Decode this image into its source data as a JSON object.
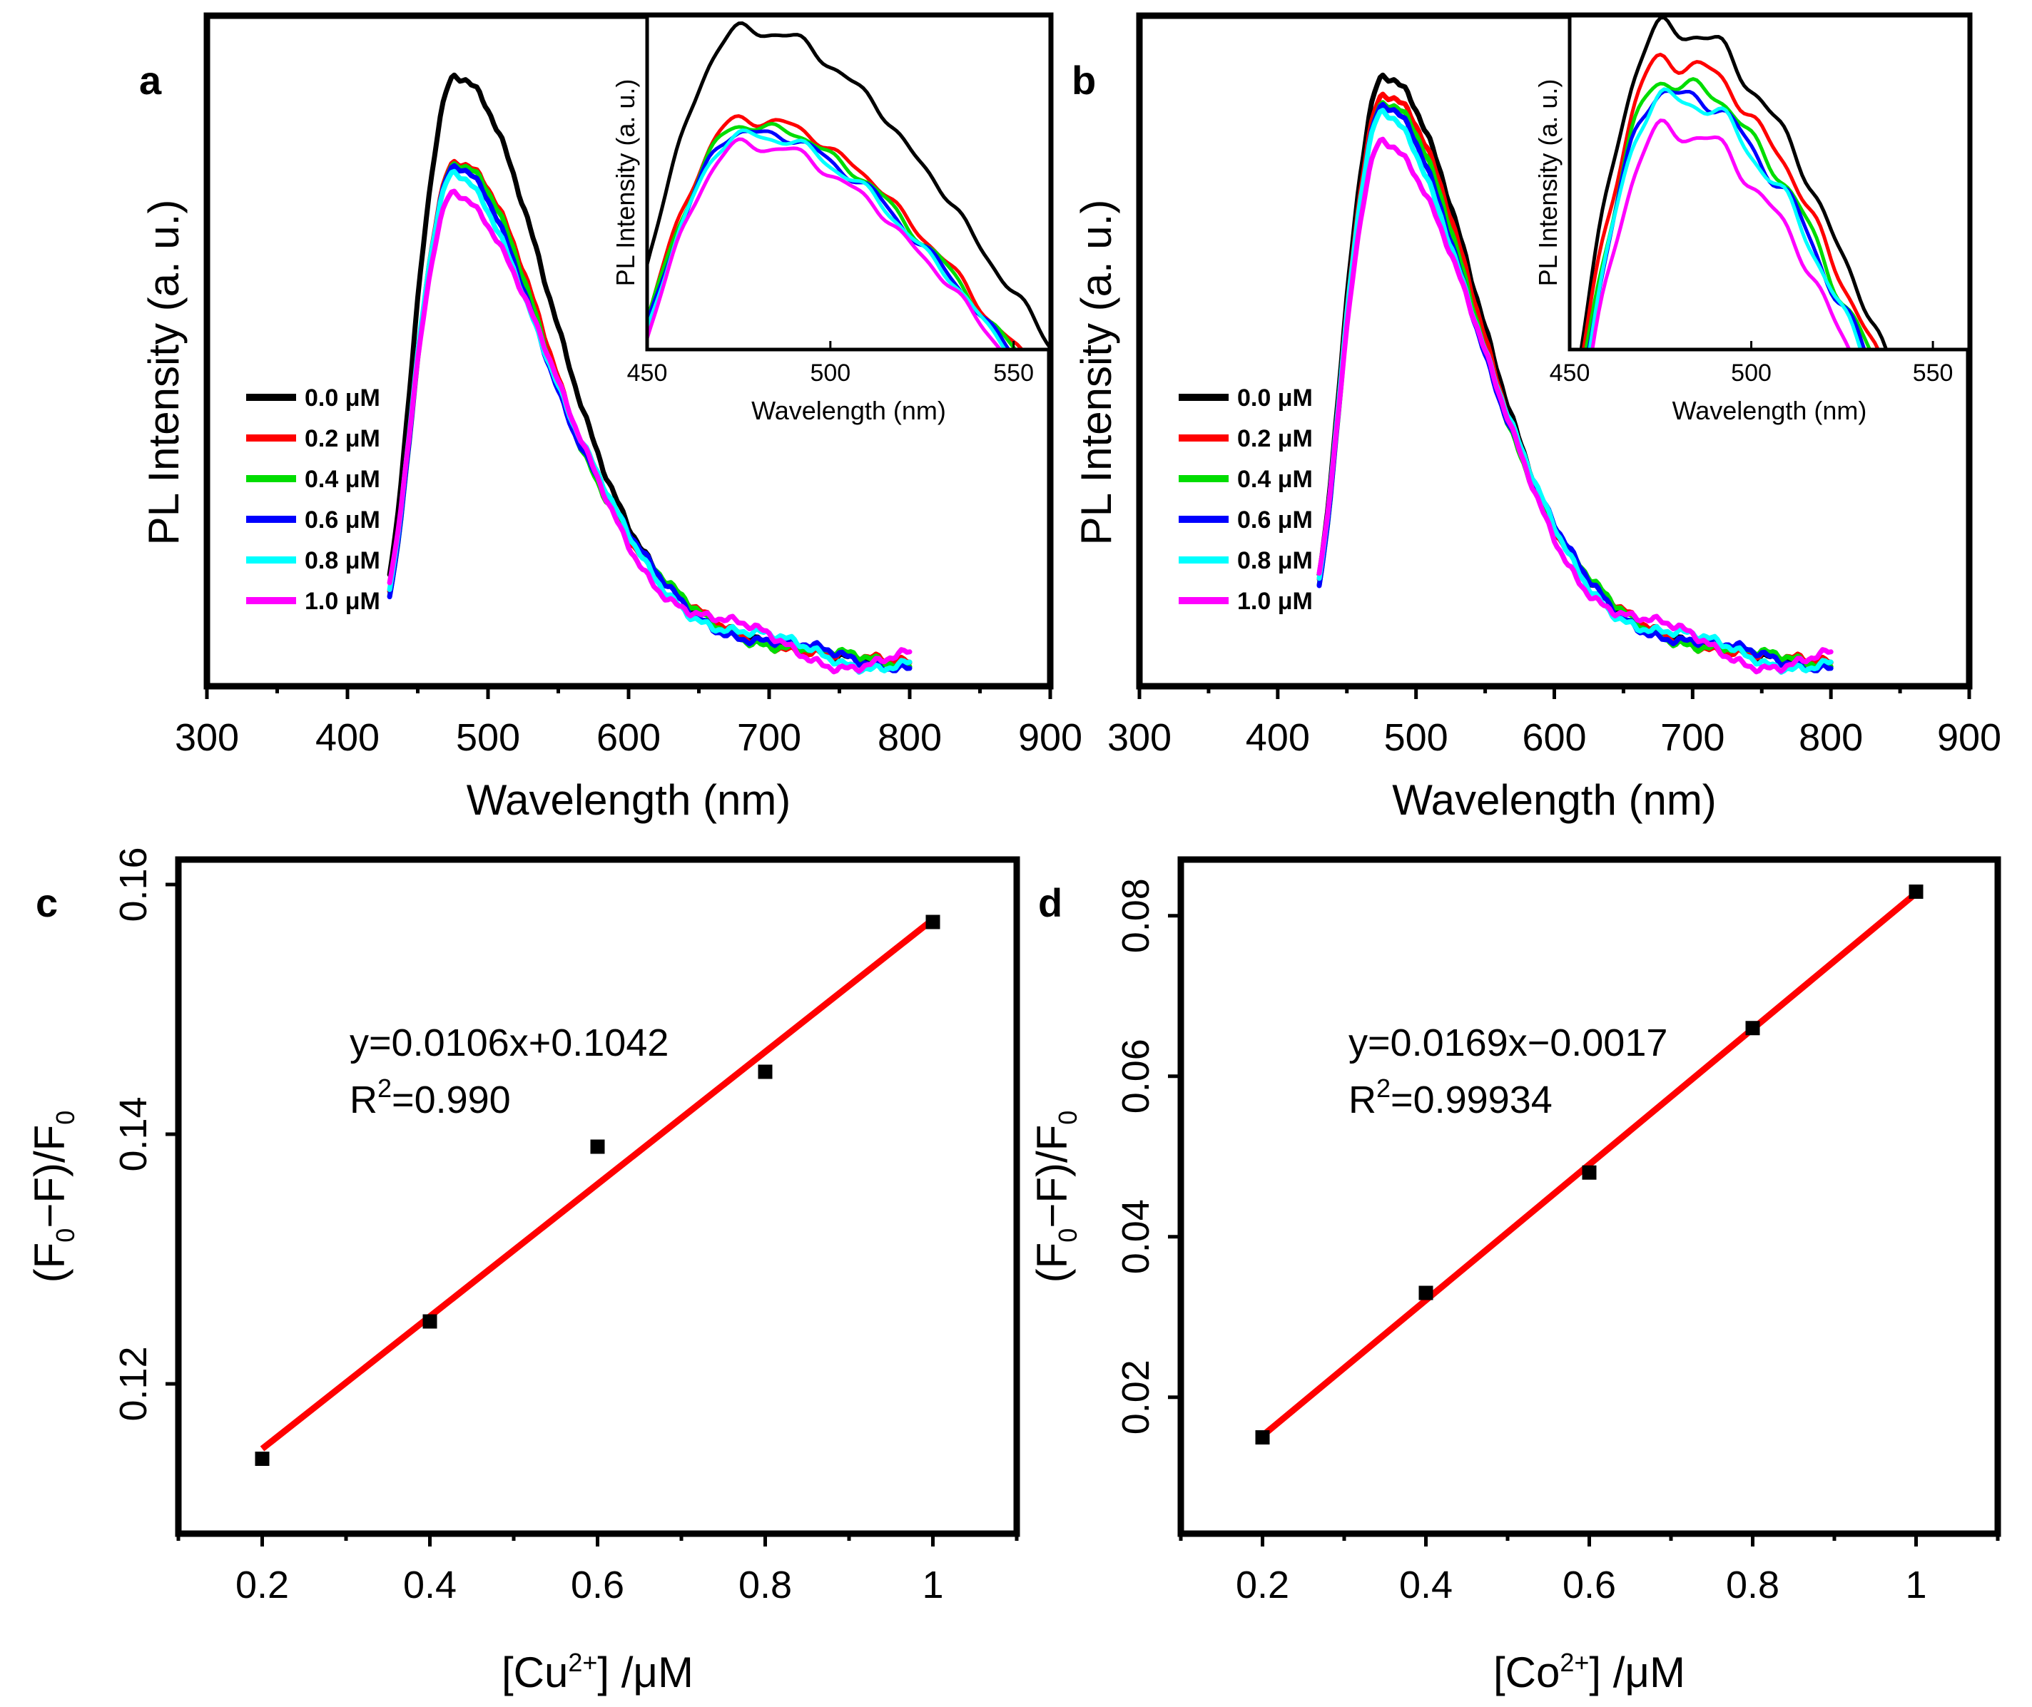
{
  "chart_data": [
    {
      "panel": "a",
      "type": "line",
      "xlabel": "Wavelength (nm)",
      "ylabel": "PL Intensity (a. u.)",
      "xlim": [
        300,
        900
      ],
      "xticks": [
        300,
        400,
        500,
        600,
        700,
        800,
        900
      ],
      "ylim": [
        0,
        1.1
      ],
      "series": [
        {
          "name": "0.0 μM",
          "color": "#000000",
          "peak": 1.0
        },
        {
          "name": "0.2 μM",
          "color": "#ff0000",
          "peak": 0.86
        },
        {
          "name": "0.4 μM",
          "color": "#00dd00",
          "peak": 0.85
        },
        {
          "name": "0.6 μM",
          "color": "#0000ff",
          "peak": 0.84
        },
        {
          "name": "0.8 μM",
          "color": "#00ffff",
          "peak": 0.835
        },
        {
          "name": "1.0 μM",
          "color": "#ff00ff",
          "peak": 0.82
        }
      ],
      "inset": {
        "xlabel": "Wavelength (nm)",
        "ylabel": "PL Intensity (a. u.)",
        "xlim": [
          450,
          560
        ],
        "xticks": [
          450,
          500,
          550
        ],
        "ylim": [
          0.5,
          1.02
        ]
      }
    },
    {
      "panel": "b",
      "type": "line",
      "xlabel": "Wavelength (nm)",
      "ylabel": "PL Intensity (a. u.)",
      "xlim": [
        300,
        900
      ],
      "xticks": [
        300,
        400,
        500,
        600,
        700,
        800,
        900
      ],
      "ylim": [
        0,
        1.1
      ],
      "series": [
        {
          "name": "0.0 μM",
          "color": "#000000",
          "peak": 1.0
        },
        {
          "name": "0.2 μM",
          "color": "#ff0000",
          "peak": 0.97
        },
        {
          "name": "0.4 μM",
          "color": "#00dd00",
          "peak": 0.95
        },
        {
          "name": "0.6 μM",
          "color": "#0000ff",
          "peak": 0.94
        },
        {
          "name": "0.8 μM",
          "color": "#00ffff",
          "peak": 0.935
        },
        {
          "name": "1.0 μM",
          "color": "#ff00ff",
          "peak": 0.905
        }
      ],
      "inset": {
        "xlabel": "Wavelength (nm)",
        "ylabel": "PL Intensity (a. u.)",
        "xlim": [
          450,
          560
        ],
        "xticks": [
          450,
          500,
          550
        ],
        "ylim": [
          0.7,
          1.01
        ]
      }
    },
    {
      "panel": "c",
      "type": "scatter",
      "xlabel": "[Cu2+] /μM",
      "ylabel": "(F0−F)/F0",
      "xlim": [
        0.1,
        1.1
      ],
      "xticks": [
        0.2,
        0.4,
        0.6,
        0.8,
        1
      ],
      "ylim": [
        0.108,
        0.162
      ],
      "yticks": [
        0.12,
        0.14,
        0.16
      ],
      "x": [
        0.2,
        0.4,
        0.6,
        0.8,
        1.0
      ],
      "y": [
        0.114,
        0.125,
        0.139,
        0.145,
        0.157
      ],
      "fit": {
        "slope": 0.0106,
        "intercept": 0.1042,
        "color": "#ff0000"
      },
      "equation": "y=0.0106x+0.1042",
      "r2": "=0.990"
    },
    {
      "panel": "d",
      "type": "scatter",
      "xlabel": "[Co2+] /μM",
      "ylabel": "(F0−F)/F0",
      "xlim": [
        0.1,
        1.1
      ],
      "xticks": [
        0.2,
        0.4,
        0.6,
        0.8,
        1
      ],
      "ylim": [
        0.003,
        0.087
      ],
      "yticks": [
        0.02,
        0.04,
        0.06,
        0.08
      ],
      "x": [
        0.2,
        0.4,
        0.6,
        0.8,
        1.0
      ],
      "y": [
        0.015,
        0.033,
        0.048,
        0.066,
        0.083
      ],
      "fit": {
        "slope": 0.0169,
        "intercept": -0.0017,
        "color": "#ff0000"
      },
      "equation": "y=0.0169x−0.0017",
      "r2": "=0.99934"
    }
  ],
  "labels": {
    "panel_a": "a",
    "panel_b": "b",
    "panel_c": "c",
    "panel_d": "d",
    "r_letter": "R",
    "r_sup": "2",
    "f_letter": "F",
    "f_sub": "0",
    "c_xlabel_pre": "[Cu",
    "d_xlabel_pre": "[Co",
    "ion_sup": "2+",
    "xlabel_post": "] /μM",
    "ylabel_open": "(F",
    "ylabel_mid": "−F)/F"
  }
}
